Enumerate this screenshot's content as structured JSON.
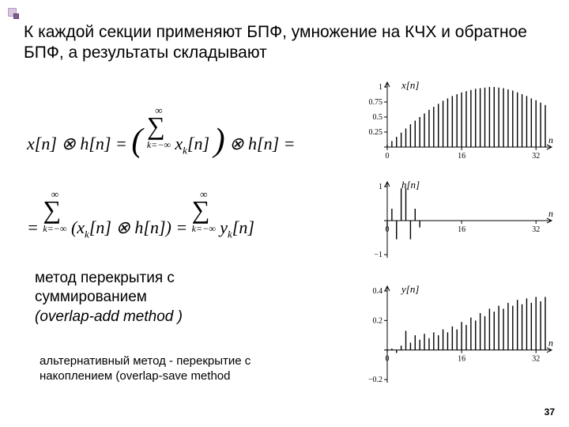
{
  "bullet": {
    "big_color": "#d9c7e0",
    "small_color": "#806090"
  },
  "title": {
    "text": "К каждой секции применяют БПФ, умножение на КЧХ и обратное БПФ, а результаты складывают",
    "fontsize": 21
  },
  "equations": {
    "line1_html": "<span style='font-style:italic'>x</span>[<span style='font-style:italic'>n</span>] ⊗ <span style='font-style:italic'>h</span>[<span style='font-style:italic'>n</span>] = <span style='font-size:42px;position:relative;top:2px'>(</span> <span style='display:inline-block;position:relative;top:-2px'><span style='display:block;font-size:13px;text-align:center'>∞</span><span style='font-size:32px;line-height:0.7;font-style:normal'>∑</span><span style='display:block;font-size:12px;text-align:center'><span style='font-style:italic'>k</span>=−∞</span></span> <span style='font-style:italic'>x<sub style='font-size:13px'>k</sub></span>[<span style='font-style:italic'>n</span>] <span style='font-size:42px;position:relative;top:2px'>)</span> ⊗ <span style='font-style:italic'>h</span>[<span style='font-style:italic'>n</span>] =",
    "line2_html": "= <span style='display:inline-block;position:relative;top:-2px'><span style='display:block;font-size:13px;text-align:center'>∞</span><span style='font-size:32px;line-height:0.7;font-style:normal'>∑</span><span style='display:block;font-size:12px;text-align:center'><span style='font-style:italic'>k</span>=−∞</span></span> (<span style='font-style:italic'>x<sub style='font-size:13px'>k</sub></span>[<span style='font-style:italic'>n</span>] ⊗ <span style='font-style:italic'>h</span>[<span style='font-style:italic'>n</span>]) = <span style='display:inline-block;position:relative;top:-2px'><span style='display:block;font-size:13px;text-align:center'>∞</span><span style='font-size:32px;line-height:0.7;font-style:normal'>∑</span><span style='display:block;font-size:12px;text-align:center'><span style='font-style:italic'>k</span>=−∞</span></span> <span style='font-style:italic'>y<sub style='font-size:13px'>k</sub></span>[<span style='font-style:italic'>n</span>]"
  },
  "method": {
    "line1": "метод перекрытия с",
    "line2": "суммированием",
    "line3": "(overlap-add method )",
    "fontsize": 19
  },
  "alt": {
    "line1": "альтернативный метод - перекрытие с",
    "line2": "накоплением (overlap-save method",
    "fontsize": 15
  },
  "page_number": "37",
  "charts": {
    "common": {
      "axis_color": "#000000",
      "bar_color": "#000000",
      "font": "Times New Roman",
      "x_ticks": [
        0,
        16,
        32
      ],
      "x_axis_label": "n"
    },
    "x_chart": {
      "label": "x[n]",
      "ylim": [
        0,
        1
      ],
      "y_ticks": [
        0.25,
        0.5,
        0.75,
        1
      ],
      "y_tick_labels": [
        "0.25",
        "0.5",
        "0.75",
        "1"
      ],
      "data_n": [
        0,
        1,
        2,
        3,
        4,
        5,
        6,
        7,
        8,
        9,
        10,
        11,
        12,
        13,
        14,
        15,
        16,
        17,
        18,
        19,
        20,
        21,
        22,
        23,
        24,
        25,
        26,
        27,
        28,
        29,
        30,
        31,
        32,
        33,
        34
      ],
      "data_v": [
        0.04,
        0.1,
        0.17,
        0.24,
        0.31,
        0.38,
        0.44,
        0.5,
        0.56,
        0.62,
        0.67,
        0.72,
        0.77,
        0.81,
        0.85,
        0.88,
        0.91,
        0.93,
        0.95,
        0.97,
        0.98,
        0.99,
        1.0,
        1.0,
        0.99,
        0.98,
        0.96,
        0.94,
        0.91,
        0.88,
        0.85,
        0.81,
        0.78,
        0.74,
        0.7
      ]
    },
    "h_chart": {
      "label": "h[n]",
      "ylim": [
        -1,
        1
      ],
      "y_ticks": [
        -1,
        1
      ],
      "y_tick_labels": [
        "−1",
        "1"
      ],
      "data_n": [
        0,
        1,
        2,
        3,
        4,
        5,
        6,
        7
      ],
      "data_v": [
        -0.2,
        0.35,
        -0.55,
        0.95,
        0.95,
        -0.55,
        0.35,
        -0.2
      ]
    },
    "y_chart": {
      "label": "y[n]",
      "ylim": [
        -0.2,
        0.4
      ],
      "y_ticks": [
        -0.2,
        0.2,
        0.4
      ],
      "y_tick_labels": [
        "−0.2",
        "0.2",
        "0.4"
      ],
      "data_n": [
        0,
        1,
        2,
        3,
        4,
        5,
        6,
        7,
        8,
        9,
        10,
        11,
        12,
        13,
        14,
        15,
        16,
        17,
        18,
        19,
        20,
        21,
        22,
        23,
        24,
        25,
        26,
        27,
        28,
        29,
        30,
        31,
        32,
        33,
        34
      ],
      "data_v": [
        -0.01,
        0.01,
        -0.02,
        0.03,
        0.13,
        0.05,
        0.1,
        0.07,
        0.11,
        0.08,
        0.12,
        0.1,
        0.14,
        0.12,
        0.16,
        0.14,
        0.19,
        0.17,
        0.22,
        0.2,
        0.25,
        0.23,
        0.28,
        0.26,
        0.3,
        0.28,
        0.32,
        0.3,
        0.34,
        0.31,
        0.35,
        0.32,
        0.36,
        0.33,
        0.36
      ]
    }
  }
}
